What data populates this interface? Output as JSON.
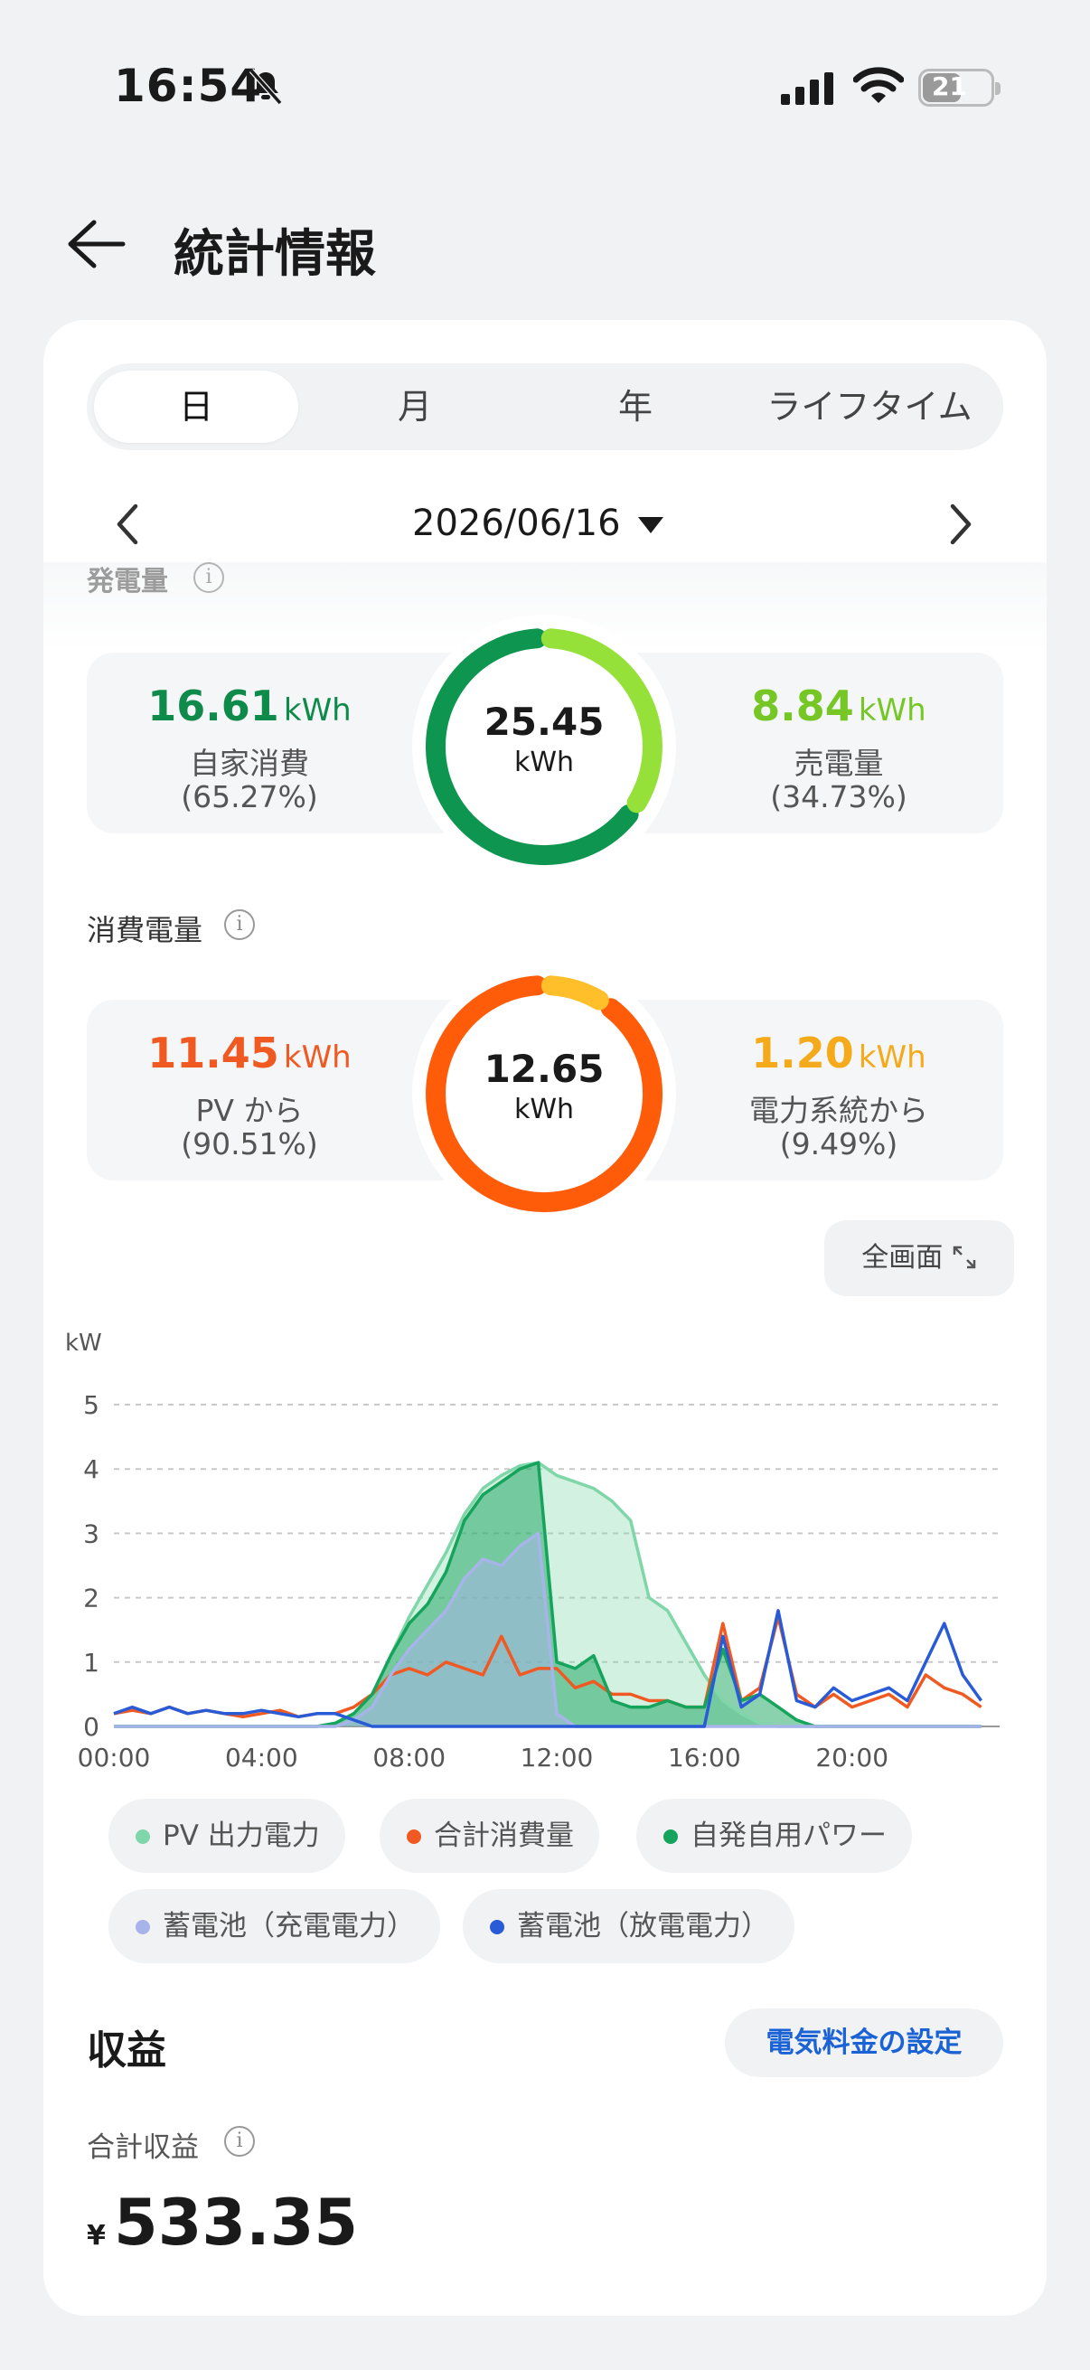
{
  "status_bar": {
    "time": "16:54",
    "battery": "21"
  },
  "header": {
    "title": "統計情報"
  },
  "tabs": [
    {
      "label": "日",
      "active": true
    },
    {
      "label": "月",
      "active": false
    },
    {
      "label": "年",
      "active": false
    },
    {
      "label": "ライフタイム",
      "active": false
    }
  ],
  "date_nav": {
    "date": "2026/06/16"
  },
  "generation": {
    "title": "発電量",
    "total_value": "25.45",
    "total_unit": "kWh",
    "left": {
      "value": "16.61",
      "unit": "kWh",
      "label": "自家消費",
      "percent": "(65.27%)",
      "color": "#0e8a4a",
      "fraction": 0.6527
    },
    "right": {
      "value": "8.84",
      "unit": "kWh",
      "label": "売電量",
      "percent": "(34.73%)",
      "color": "#76c726",
      "fraction": 0.3473
    },
    "ring_colors": {
      "self": "#0e9650",
      "sold": "#96e03a"
    }
  },
  "consumption": {
    "title": "消費電量",
    "total_value": "12.65",
    "total_unit": "kWh",
    "left": {
      "value": "11.45",
      "unit": "kWh",
      "label": "PV から",
      "percent": "(90.51%)",
      "color": "#f05a22",
      "fraction": 0.9051
    },
    "right": {
      "value": "1.20",
      "unit": "kWh",
      "label": "電力系統から",
      "percent": "(9.49%)",
      "color": "#f4aa1a",
      "fraction": 0.0949
    },
    "ring_colors": {
      "pv": "#ff5c0a",
      "grid": "#ffbf2a"
    }
  },
  "fullscreen_button": "全画面",
  "chart_data": {
    "type": "line",
    "ylabel": "kW",
    "ylim": [
      0,
      5
    ],
    "yticks": [
      "0",
      "1",
      "2",
      "3",
      "4",
      "5"
    ],
    "xticks": [
      "00:00",
      "04:00",
      "08:00",
      "12:00",
      "16:00",
      "20:00"
    ],
    "x_hours": [
      0,
      0.5,
      1,
      1.5,
      2,
      2.5,
      3,
      3.5,
      4,
      4.5,
      5,
      5.5,
      6,
      6.5,
      7,
      7.5,
      8,
      8.5,
      9,
      9.5,
      10,
      10.5,
      11,
      11.5,
      12,
      12.5,
      13,
      13.5,
      14,
      14.5,
      15,
      15.5,
      16,
      16.5,
      17,
      17.5,
      18,
      18.5,
      19,
      19.5,
      20,
      20.5,
      21,
      21.5,
      22,
      22.5,
      23,
      23.5
    ],
    "series": [
      {
        "name": "PV 出力電力",
        "color": "#7fd6a8",
        "values": [
          0,
          0,
          0,
          0,
          0,
          0,
          0,
          0,
          0,
          0,
          0,
          0,
          0.05,
          0.2,
          0.5,
          1.1,
          1.7,
          2.2,
          2.7,
          3.3,
          3.7,
          3.9,
          4.05,
          4.1,
          3.9,
          3.8,
          3.7,
          3.5,
          3.2,
          2.0,
          1.8,
          1.3,
          0.8,
          0.4,
          0.2,
          0.05,
          0,
          0,
          0,
          0,
          0,
          0,
          0,
          0,
          0,
          0,
          0,
          0
        ]
      },
      {
        "name": "合計消費量",
        "color": "#f05a22",
        "values": [
          0.2,
          0.25,
          0.2,
          0.3,
          0.2,
          0.25,
          0.2,
          0.15,
          0.2,
          0.25,
          0.15,
          0.2,
          0.2,
          0.3,
          0.5,
          0.8,
          0.9,
          0.8,
          1.0,
          0.9,
          0.8,
          1.4,
          0.8,
          0.9,
          0.9,
          0.6,
          0.7,
          0.5,
          0.5,
          0.4,
          0.4,
          0.3,
          0.3,
          1.6,
          0.4,
          0.6,
          1.7,
          0.5,
          0.3,
          0.5,
          0.3,
          0.4,
          0.5,
          0.3,
          0.8,
          0.6,
          0.5,
          0.3
        ]
      },
      {
        "name": "自発自用パワー",
        "color": "#16a35c",
        "values": [
          0,
          0,
          0,
          0,
          0,
          0,
          0,
          0,
          0,
          0,
          0,
          0,
          0.05,
          0.2,
          0.5,
          1.1,
          1.6,
          1.9,
          2.4,
          3.2,
          3.6,
          3.8,
          4.0,
          4.1,
          1.0,
          0.9,
          1.1,
          0.4,
          0.3,
          0.3,
          0.4,
          0.3,
          0.3,
          1.2,
          0.4,
          0.5,
          0.3,
          0.1,
          0,
          0,
          0,
          0,
          0,
          0,
          0,
          0,
          0,
          0
        ]
      },
      {
        "name": "蓄電池（充電電力）",
        "color": "#a7b4ea",
        "values": [
          0,
          0,
          0,
          0,
          0,
          0,
          0,
          0,
          0,
          0,
          0,
          0,
          0,
          0.1,
          0.3,
          0.8,
          1.2,
          1.5,
          1.8,
          2.3,
          2.6,
          2.5,
          2.8,
          3.0,
          0.2,
          0,
          0,
          0,
          0,
          0,
          0,
          0,
          0,
          0,
          0,
          0,
          0,
          0,
          0,
          0,
          0,
          0,
          0,
          0,
          0,
          0,
          0,
          0
        ]
      },
      {
        "name": "蓄電池（放電電力）",
        "color": "#2a5bd7",
        "values": [
          0.2,
          0.3,
          0.2,
          0.3,
          0.2,
          0.25,
          0.2,
          0.2,
          0.25,
          0.2,
          0.15,
          0.2,
          0.2,
          0.1,
          0,
          0,
          0,
          0,
          0,
          0,
          0,
          0,
          0,
          0,
          0,
          0,
          0,
          0,
          0,
          0,
          0,
          0,
          0,
          1.4,
          0.3,
          0.5,
          1.8,
          0.4,
          0.3,
          0.6,
          0.4,
          0.5,
          0.6,
          0.4,
          1.0,
          1.6,
          0.8,
          0.4
        ]
      }
    ]
  },
  "revenue": {
    "title": "収益",
    "tariff_button": "電気料金の設定",
    "total_label": "合計収益",
    "currency": "¥",
    "total_value": "533.35"
  }
}
